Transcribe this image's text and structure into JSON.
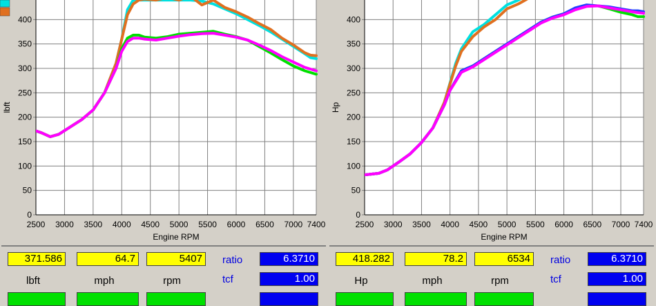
{
  "chart_data": [
    {
      "type": "line",
      "xlabel": "Engine RPM",
      "ylabel": "lbft",
      "xlim": [
        2500,
        7400
      ],
      "ylim": [
        0,
        450
      ],
      "x_ticks": [
        "2500",
        "3000",
        "3500",
        "4000",
        "4500",
        "5000",
        "5500",
        "6000",
        "6500",
        "7000",
        "7400"
      ],
      "y_ticks": [
        "0",
        "50",
        "100",
        "150",
        "200",
        "250",
        "300",
        "350",
        "400"
      ],
      "grid": true,
      "series": [
        {
          "color": "#00e0e0",
          "x": [
            2500,
            2600,
            2750,
            2900,
            3100,
            3300,
            3500,
            3700,
            3900,
            4000,
            4100,
            4200,
            4400,
            4600,
            4800,
            5000,
            5200,
            5400,
            5600,
            5800,
            6000,
            6200,
            6400,
            6600,
            6800,
            7000,
            7200,
            7300,
            7400
          ],
          "values": [
            172,
            168,
            160,
            165,
            180,
            195,
            215,
            250,
            310,
            360,
            420,
            440,
            440,
            440,
            440,
            440,
            440,
            438,
            432,
            422,
            412,
            400,
            388,
            375,
            360,
            345,
            330,
            322,
            320
          ]
        },
        {
          "color": "#e07020",
          "x": [
            2500,
            2600,
            2750,
            2900,
            3100,
            3300,
            3500,
            3700,
            3900,
            4000,
            4100,
            4200,
            4300,
            4400,
            4600,
            4800,
            5000,
            5200,
            5400,
            5600,
            5800,
            6000,
            6200,
            6400,
            6600,
            6800,
            7000,
            7200,
            7300,
            7400
          ],
          "values": [
            172,
            168,
            160,
            165,
            180,
            195,
            215,
            250,
            310,
            360,
            410,
            432,
            440,
            442,
            440,
            445,
            440,
            448,
            430,
            440,
            425,
            416,
            405,
            392,
            380,
            362,
            348,
            332,
            327,
            326
          ]
        },
        {
          "color": "#00e000",
          "x": [
            2500,
            2600,
            2750,
            2900,
            3100,
            3300,
            3500,
            3700,
            3900,
            4000,
            4100,
            4200,
            4300,
            4400,
            4600,
            4800,
            5000,
            5200,
            5400,
            5600,
            5800,
            6000,
            6200,
            6400,
            6600,
            6800,
            7000,
            7200,
            7400
          ],
          "values": [
            172,
            168,
            160,
            165,
            180,
            195,
            215,
            250,
            300,
            340,
            362,
            368,
            368,
            364,
            362,
            365,
            370,
            372,
            374,
            376,
            370,
            365,
            358,
            345,
            332,
            318,
            305,
            295,
            288
          ]
        },
        {
          "color": "#ff00ff",
          "x": [
            2500,
            2600,
            2750,
            2900,
            3100,
            3300,
            3500,
            3700,
            3900,
            4000,
            4100,
            4200,
            4300,
            4400,
            4600,
            4800,
            5000,
            5200,
            5400,
            5600,
            5800,
            6000,
            6200,
            6400,
            6600,
            6800,
            7000,
            7200,
            7400
          ],
          "values": [
            172,
            168,
            160,
            165,
            180,
            195,
            215,
            250,
            300,
            335,
            355,
            362,
            362,
            360,
            358,
            362,
            366,
            369,
            371,
            372,
            368,
            364,
            358,
            348,
            337,
            324,
            313,
            302,
            295
          ]
        }
      ]
    },
    {
      "type": "line",
      "xlabel": "Engine RPM",
      "ylabel": "Hp",
      "xlim": [
        2500,
        7400
      ],
      "ylim": [
        0,
        450
      ],
      "x_ticks": [
        "2500",
        "3000",
        "3500",
        "4000",
        "4500",
        "5000",
        "5500",
        "6000",
        "6500",
        "7000",
        "7400"
      ],
      "y_ticks": [
        "0",
        "50",
        "100",
        "150",
        "200",
        "250",
        "300",
        "350",
        "400"
      ],
      "grid": true,
      "series": [
        {
          "color": "#00e0e0",
          "x": [
            2500,
            2600,
            2750,
            2900,
            3100,
            3300,
            3500,
            3700,
            3900,
            4000,
            4100,
            4200,
            4400,
            4600,
            4800,
            5000,
            5200,
            5400,
            5600
          ],
          "values": [
            82,
            83,
            85,
            92,
            108,
            125,
            148,
            178,
            230,
            270,
            310,
            340,
            375,
            390,
            410,
            430,
            440,
            452,
            460
          ]
        },
        {
          "color": "#e07020",
          "x": [
            2500,
            2600,
            2750,
            2900,
            3100,
            3300,
            3500,
            3700,
            3900,
            4000,
            4100,
            4200,
            4400,
            4600,
            4800,
            5000,
            5200,
            5400,
            5600
          ],
          "values": [
            82,
            83,
            85,
            92,
            108,
            125,
            148,
            178,
            230,
            268,
            305,
            335,
            365,
            385,
            400,
            422,
            432,
            445,
            455
          ]
        },
        {
          "color": "#00e000",
          "x": [
            2500,
            2600,
            2750,
            2900,
            3100,
            3300,
            3500,
            3700,
            3900,
            4000,
            4200,
            4400,
            4600,
            4800,
            5000,
            5200,
            5400,
            5600,
            5800,
            6000,
            6200,
            6400,
            6600,
            6800,
            7000,
            7200,
            7300,
            7400
          ],
          "values": [
            82,
            83,
            85,
            92,
            108,
            125,
            148,
            178,
            225,
            255,
            295,
            305,
            320,
            335,
            350,
            365,
            380,
            395,
            405,
            412,
            422,
            428,
            428,
            422,
            415,
            410,
            406,
            406
          ]
        },
        {
          "color": "#2040ff",
          "x": [
            2500,
            2600,
            2750,
            2900,
            3100,
            3300,
            3500,
            3700,
            3900,
            4000,
            4200,
            4400,
            4600,
            4800,
            5000,
            5200,
            5400,
            5600,
            5800,
            6000,
            6200,
            6400,
            6600,
            6800,
            7000,
            7200,
            7300,
            7400
          ],
          "values": [
            82,
            83,
            85,
            92,
            108,
            125,
            148,
            178,
            225,
            255,
            295,
            305,
            320,
            335,
            350,
            365,
            380,
            395,
            405,
            412,
            424,
            430,
            428,
            426,
            422,
            418,
            418,
            416
          ]
        },
        {
          "color": "#ff00ff",
          "x": [
            2500,
            2600,
            2750,
            2900,
            3100,
            3300,
            3500,
            3700,
            3900,
            4000,
            4200,
            4400,
            4600,
            4800,
            5000,
            5200,
            5400,
            5600,
            5800,
            6000,
            6200,
            6400,
            6600,
            6800,
            7000,
            7200,
            7300,
            7400
          ],
          "values": [
            82,
            83,
            85,
            92,
            108,
            125,
            148,
            178,
            225,
            255,
            292,
            303,
            318,
            333,
            348,
            363,
            378,
            393,
            403,
            410,
            420,
            427,
            428,
            424,
            420,
            416,
            414,
            413
          ]
        }
      ]
    }
  ],
  "legend_colors": [
    "#00e0e0",
    "#e07020"
  ],
  "panels": [
    {
      "value1": "371.586",
      "value2": "64.7",
      "value3": "5407",
      "unit1": "lbft",
      "unit2": "mph",
      "unit3": "rpm",
      "ratio_label": "ratio",
      "ratio_value": "6.3710",
      "tcf_label": "tcf",
      "tcf_value": "1.00"
    },
    {
      "value1": "418.282",
      "value2": "78.2",
      "value3": "6534",
      "unit1": "Hp",
      "unit2": "mph",
      "unit3": "rpm",
      "ratio_label": "ratio",
      "ratio_value": "6.3710",
      "tcf_label": "tcf",
      "tcf_value": "1.00"
    }
  ]
}
